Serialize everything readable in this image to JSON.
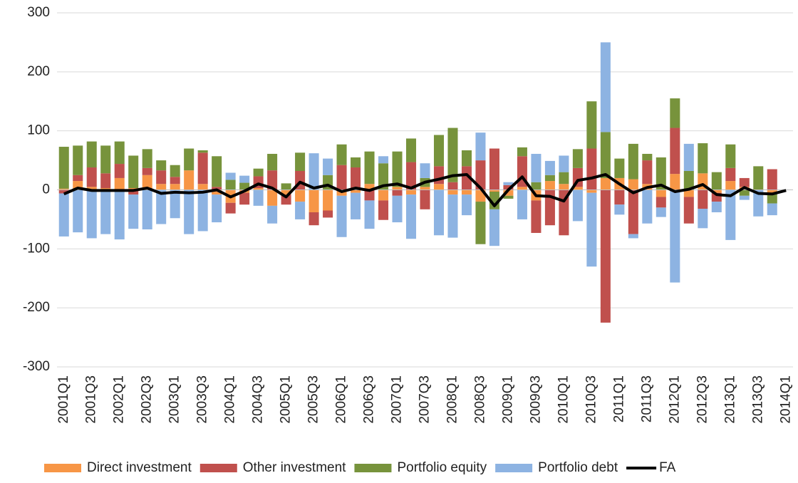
{
  "chart_data": {
    "type": "stacked-bar-line",
    "categories": [
      "2001Q1",
      null,
      "2001Q3",
      null,
      "2002Q1",
      null,
      "2002Q3",
      null,
      "2003Q1",
      null,
      "2003Q3",
      null,
      "2004Q1",
      null,
      "2004Q3",
      null,
      "2005Q1",
      null,
      "2005Q3",
      null,
      "2006Q1",
      null,
      "2006Q3",
      null,
      "2007Q1",
      null,
      "2007Q3",
      null,
      "2008Q1",
      null,
      "2008Q3",
      null,
      "2009Q1",
      null,
      "2009Q3",
      null,
      "2010Q1",
      null,
      "2010Q3",
      null,
      "2011Q1",
      null,
      "2011Q3",
      null,
      "2012Q1",
      null,
      "2012Q3",
      null,
      "2013Q1",
      null,
      "2013Q3",
      null,
      "2014Q1"
    ],
    "series": [
      {
        "name": "Direct investment",
        "color": "#f79646",
        "values": [
          2,
          15,
          5,
          3,
          20,
          3,
          25,
          10,
          10,
          33,
          10,
          -8,
          -22,
          -5,
          3,
          -27,
          -8,
          -20,
          -38,
          -35,
          -10,
          -5,
          10,
          -18,
          5,
          -8,
          5,
          10,
          -8,
          -8,
          -20,
          -3,
          -10,
          5,
          -18,
          15,
          10,
          5,
          -5,
          20,
          20,
          18,
          10,
          -12,
          27,
          -12,
          28,
          -5,
          15,
          5,
          0,
          -5,
          0
        ]
      },
      {
        "name": "Other investment",
        "color": "#c0504d",
        "values": [
          -6,
          10,
          33,
          25,
          24,
          -8,
          12,
          23,
          12,
          0,
          53,
          5,
          -18,
          -20,
          20,
          33,
          -17,
          32,
          -22,
          -12,
          42,
          38,
          -18,
          -33,
          -10,
          47,
          -33,
          30,
          13,
          40,
          50,
          70,
          8,
          52,
          -55,
          -60,
          -77,
          32,
          70,
          -225,
          -25,
          -75,
          40,
          -18,
          78,
          -45,
          -32,
          -15,
          22,
          15,
          0,
          35,
          0
        ]
      },
      {
        "name": "Portfolio equity",
        "color": "#77933c",
        "values": [
          71,
          50,
          44,
          47,
          38,
          55,
          32,
          17,
          20,
          37,
          4,
          52,
          17,
          12,
          13,
          28,
          11,
          31,
          0,
          25,
          35,
          17,
          55,
          45,
          60,
          40,
          15,
          53,
          92,
          27,
          -72,
          -30,
          -5,
          15,
          13,
          10,
          20,
          32,
          80,
          78,
          33,
          60,
          11,
          55,
          50,
          32,
          51,
          30,
          40,
          -10,
          40,
          -18,
          0
        ]
      },
      {
        "name": "Portfolio debt",
        "color": "#8db3e2",
        "values": [
          -73,
          -72,
          -82,
          -75,
          -84,
          -58,
          -67,
          -58,
          -48,
          -75,
          -70,
          -47,
          12,
          12,
          -27,
          -30,
          0,
          -30,
          62,
          28,
          -70,
          -45,
          -48,
          12,
          -45,
          -75,
          25,
          -77,
          -73,
          -35,
          47,
          -62,
          5,
          -50,
          48,
          24,
          28,
          -53,
          -125,
          152,
          -17,
          -7,
          -57,
          -16,
          -157,
          46,
          -33,
          -18,
          -85,
          -7,
          -45,
          -20,
          0
        ]
      },
      {
        "name": "FA",
        "color": "#000000",
        "values": [
          -7,
          3,
          -1,
          -1,
          -1,
          -1,
          3,
          -6,
          -4,
          -5,
          -4,
          0,
          -12,
          -2,
          10,
          3,
          -12,
          13,
          3,
          8,
          -3,
          3,
          -1,
          7,
          10,
          3,
          13,
          18,
          24,
          26,
          3,
          -27,
          0,
          22,
          -10,
          -11,
          -19,
          16,
          20,
          26,
          10,
          -5,
          4,
          8,
          -3,
          1,
          9,
          -8,
          -10,
          4,
          -6,
          -7,
          -1
        ]
      }
    ],
    "ylim": [
      -300,
      300
    ],
    "yticks": [
      -300,
      -200,
      -100,
      0,
      100,
      200,
      300
    ],
    "grid": true
  }
}
